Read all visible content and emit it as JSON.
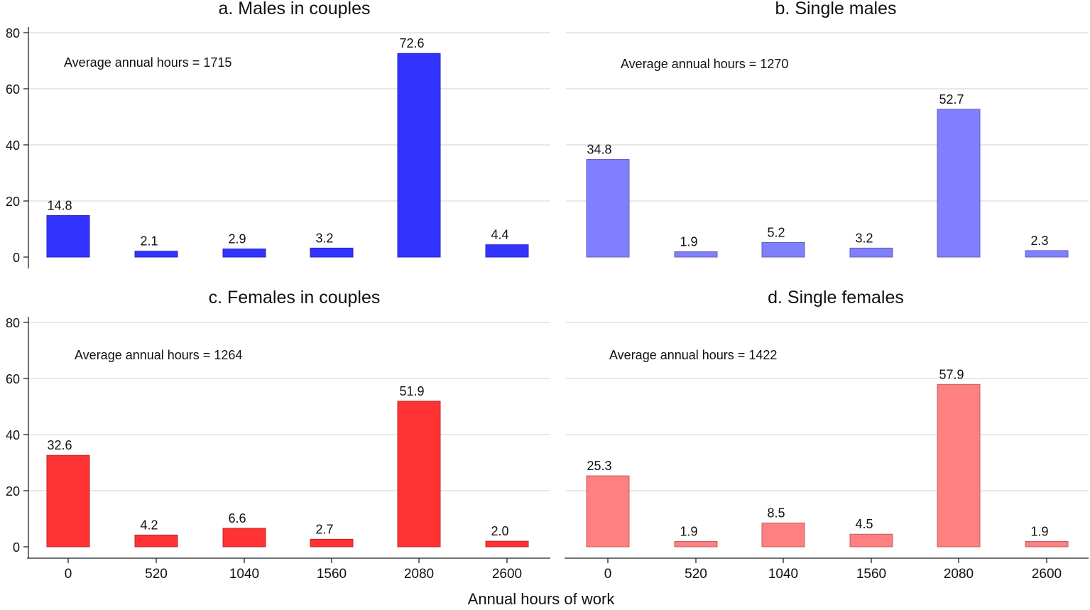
{
  "figure": {
    "xlabel": "Annual hours of work"
  },
  "chart_data": [
    {
      "type": "bar",
      "title": "a. Males in couples",
      "annotation": "Average annual hours = 1715",
      "categories": [
        "0",
        "520",
        "1040",
        "1560",
        "2080",
        "2600"
      ],
      "values": [
        14.8,
        2.1,
        2.9,
        3.2,
        72.6,
        4.4
      ],
      "value_labels": [
        "14.8",
        "2.1",
        "2.9",
        "3.2",
        "72.6",
        "4.4"
      ],
      "color": "#3333ff",
      "ylim": [
        0,
        80
      ],
      "yticks": [
        0,
        20,
        40,
        60,
        80
      ],
      "grid": true
    },
    {
      "type": "bar",
      "title": "b. Single males",
      "annotation": "Average annual hours = 1270",
      "categories": [
        "0",
        "520",
        "1040",
        "1560",
        "2080",
        "2600"
      ],
      "values": [
        34.8,
        1.9,
        5.2,
        3.2,
        52.7,
        2.3
      ],
      "value_labels": [
        "34.8",
        "1.9",
        "5.2",
        "3.2",
        "52.7",
        "2.3"
      ],
      "color": "#8080ff",
      "ylim": [
        0,
        80
      ],
      "yticks": [
        0,
        20,
        40,
        60,
        80
      ],
      "grid": true
    },
    {
      "type": "bar",
      "title": "c. Females in couples",
      "annotation": "Average annual hours = 1264",
      "categories": [
        "0",
        "520",
        "1040",
        "1560",
        "2080",
        "2600"
      ],
      "values": [
        32.6,
        4.2,
        6.6,
        2.7,
        51.9,
        2.0
      ],
      "value_labels": [
        "32.6",
        "4.2",
        "6.6",
        "2.7",
        "51.9",
        "2.0"
      ],
      "color": "#ff3333",
      "ylim": [
        0,
        80
      ],
      "yticks": [
        0,
        20,
        40,
        60,
        80
      ],
      "grid": true
    },
    {
      "type": "bar",
      "title": "d. Single females",
      "annotation": "Average annual hours = 1422",
      "categories": [
        "0",
        "520",
        "1040",
        "1560",
        "2080",
        "2600"
      ],
      "values": [
        25.3,
        1.9,
        8.5,
        4.5,
        57.9,
        1.9
      ],
      "value_labels": [
        "25.3",
        "1.9",
        "8.5",
        "4.5",
        "57.9",
        "1.9"
      ],
      "color": "#ff8080",
      "ylim": [
        0,
        80
      ],
      "yticks": [
        0,
        20,
        40,
        60,
        80
      ],
      "grid": true
    }
  ]
}
